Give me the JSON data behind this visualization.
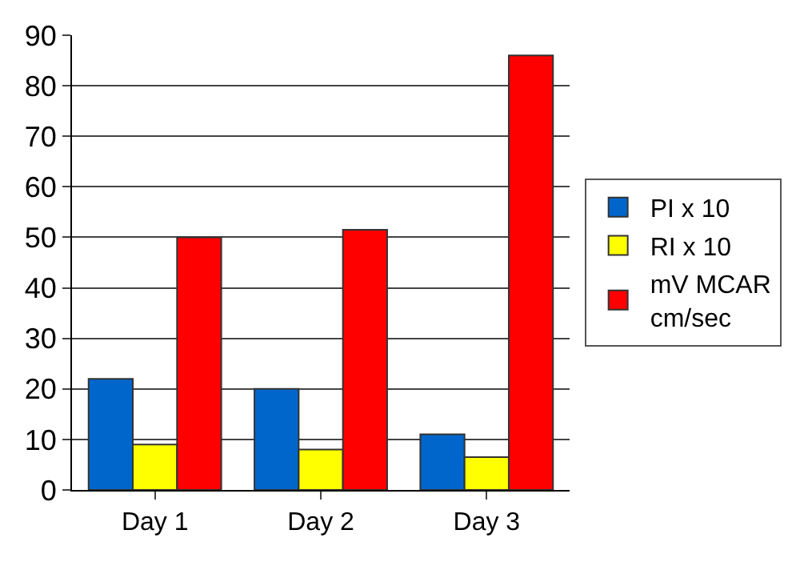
{
  "chart_data": {
    "type": "bar",
    "categories": [
      "Day 1",
      "Day 2",
      "Day 3"
    ],
    "series": [
      {
        "name": "PI x 10",
        "color": "#0066cc",
        "values": [
          22,
          20,
          11
        ]
      },
      {
        "name": "RI x 10",
        "color": "#ffff00",
        "values": [
          9,
          8,
          6.5
        ]
      },
      {
        "name": "mV MCAR\ncm/sec",
        "color": "#ff0000",
        "values": [
          50,
          51.5,
          86
        ]
      }
    ],
    "ylim": [
      0,
      90
    ],
    "yticks": [
      0,
      10,
      20,
      30,
      40,
      50,
      60,
      70,
      80,
      90
    ],
    "grid": "y",
    "legend": "right"
  }
}
